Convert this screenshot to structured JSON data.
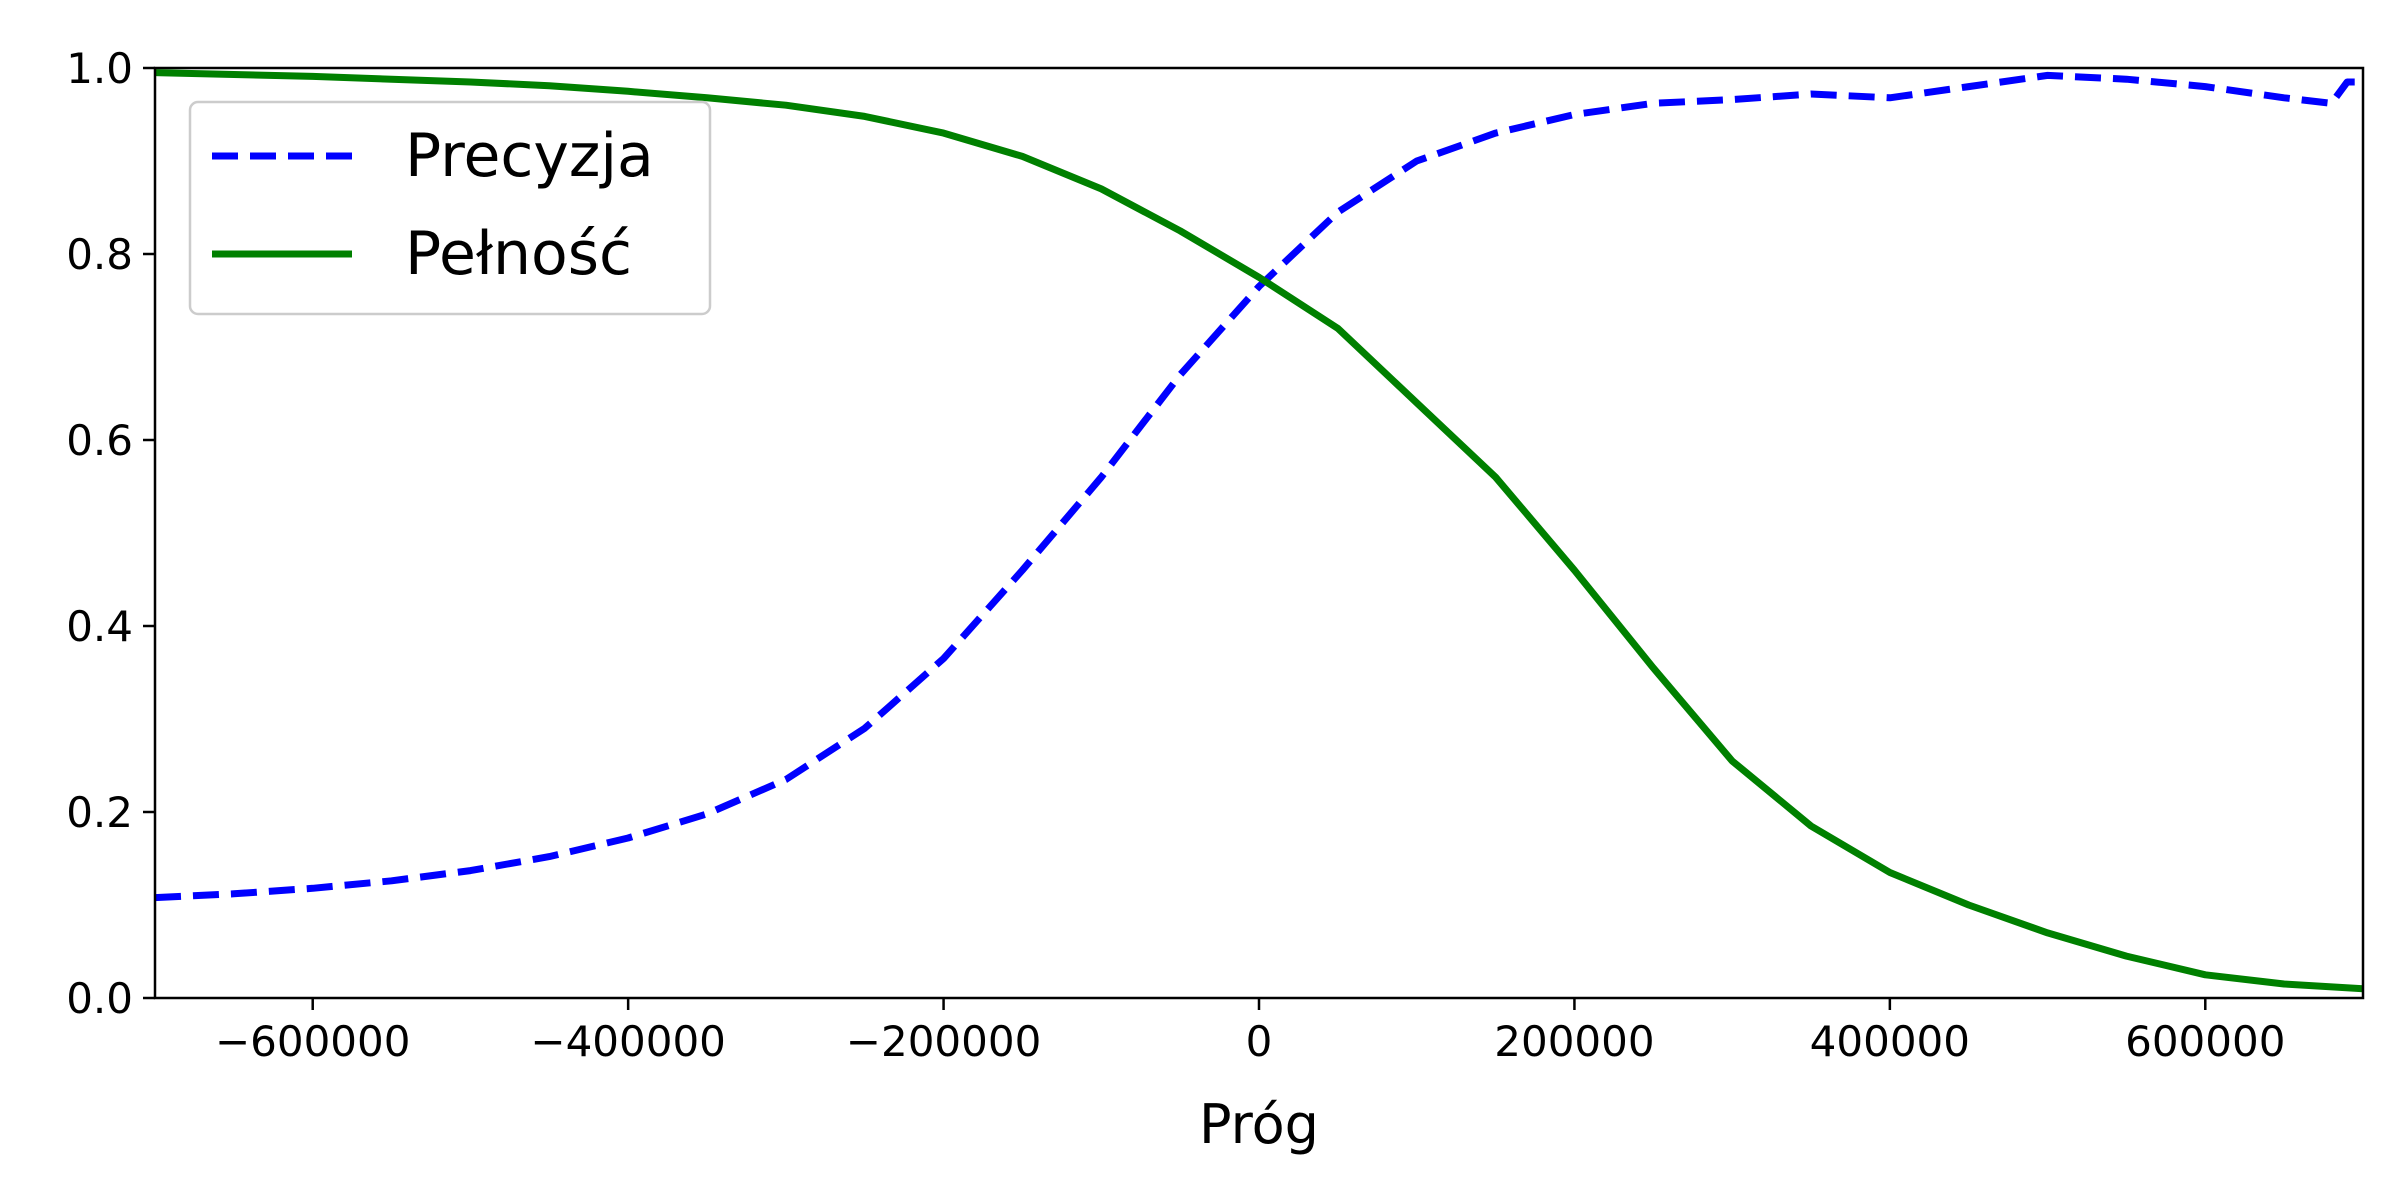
{
  "chart_data": {
    "type": "line",
    "title": "",
    "xlabel": "Próg",
    "ylabel": "",
    "xlim": [
      -700000,
      700000
    ],
    "ylim": [
      0,
      1
    ],
    "grid": false,
    "legend_placement": "upper-left",
    "x_ticks": [
      {
        "value": -600000,
        "label": "−600000"
      },
      {
        "value": -400000,
        "label": "−400000"
      },
      {
        "value": -200000,
        "label": "−200000"
      },
      {
        "value": 0,
        "label": "0"
      },
      {
        "value": 200000,
        "label": "200000"
      },
      {
        "value": 400000,
        "label": "400000"
      },
      {
        "value": 600000,
        "label": "600000"
      }
    ],
    "y_ticks": [
      {
        "value": 0.0,
        "label": "0.0"
      },
      {
        "value": 0.2,
        "label": "0.2"
      },
      {
        "value": 0.4,
        "label": "0.4"
      },
      {
        "value": 0.6,
        "label": "0.6"
      },
      {
        "value": 0.8,
        "label": "0.8"
      },
      {
        "value": 1.0,
        "label": "1.0"
      }
    ],
    "series": [
      {
        "name": "Precyzja",
        "color": "#0000ff",
        "style": "dashed",
        "x": [
          -700000,
          -650000,
          -600000,
          -550000,
          -500000,
          -450000,
          -400000,
          -350000,
          -300000,
          -250000,
          -200000,
          -150000,
          -100000,
          -50000,
          0,
          50000,
          100000,
          150000,
          200000,
          250000,
          300000,
          350000,
          400000,
          450000,
          500000,
          550000,
          600000,
          650000,
          680000,
          690000,
          700000
        ],
        "y": [
          0.108,
          0.112,
          0.118,
          0.126,
          0.137,
          0.152,
          0.172,
          0.198,
          0.235,
          0.29,
          0.365,
          0.46,
          0.56,
          0.67,
          0.765,
          0.845,
          0.9,
          0.93,
          0.95,
          0.962,
          0.966,
          0.972,
          0.968,
          0.98,
          0.992,
          0.988,
          0.98,
          0.968,
          0.962,
          0.985,
          0.985
        ]
      },
      {
        "name": "Pełność",
        "color": "#008000",
        "style": "solid",
        "x": [
          -700000,
          -650000,
          -600000,
          -550000,
          -500000,
          -450000,
          -400000,
          -350000,
          -300000,
          -250000,
          -200000,
          -150000,
          -100000,
          -50000,
          0,
          50000,
          100000,
          150000,
          200000,
          250000,
          300000,
          350000,
          400000,
          450000,
          500000,
          550000,
          600000,
          650000,
          700000
        ],
        "y": [
          0.995,
          0.993,
          0.991,
          0.988,
          0.985,
          0.981,
          0.975,
          0.968,
          0.96,
          0.948,
          0.93,
          0.905,
          0.87,
          0.825,
          0.775,
          0.72,
          0.64,
          0.56,
          0.46,
          0.355,
          0.255,
          0.185,
          0.135,
          0.1,
          0.07,
          0.045,
          0.025,
          0.015,
          0.01
        ]
      }
    ]
  }
}
